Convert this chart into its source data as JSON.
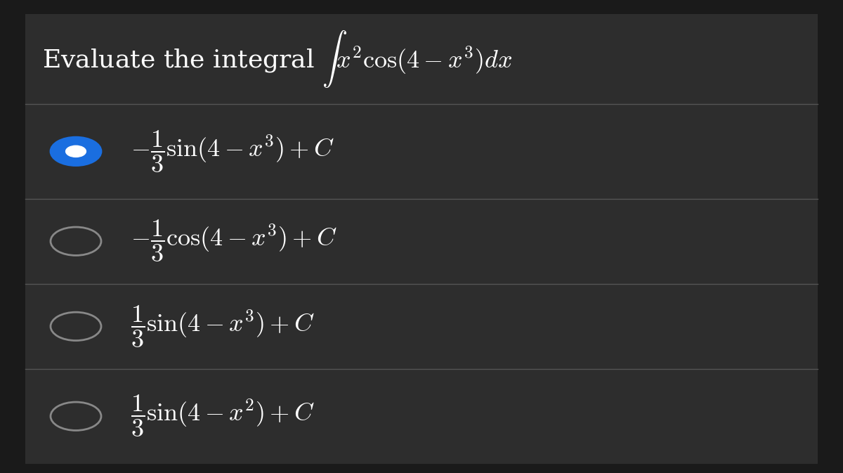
{
  "bg_color": "#1a1a1a",
  "panel_color": "#2d2d2d",
  "text_color": "#ffffff",
  "title_text": "Evaluate the integral $\\int x^2 \\cos(4 - x^3)dx$",
  "divider_color": "#555555",
  "selected_color": "#1a6ee0",
  "unselected_color": "#888888",
  "options": [
    {
      "text": "$-\\dfrac{1}{3}\\sin(4 - x^3)+C$",
      "selected": true
    },
    {
      "text": "$-\\dfrac{1}{3}\\cos(4 - x^3) + C$",
      "selected": false
    },
    {
      "text": "$\\dfrac{1}{3}\\sin(4 - x^3) + C$",
      "selected": false
    },
    {
      "text": "$\\dfrac{1}{3}\\sin(4 - x^2) + C$",
      "selected": false
    }
  ],
  "title_fontsize": 26,
  "option_fontsize": 26,
  "fig_width": 12.0,
  "fig_height": 6.73
}
